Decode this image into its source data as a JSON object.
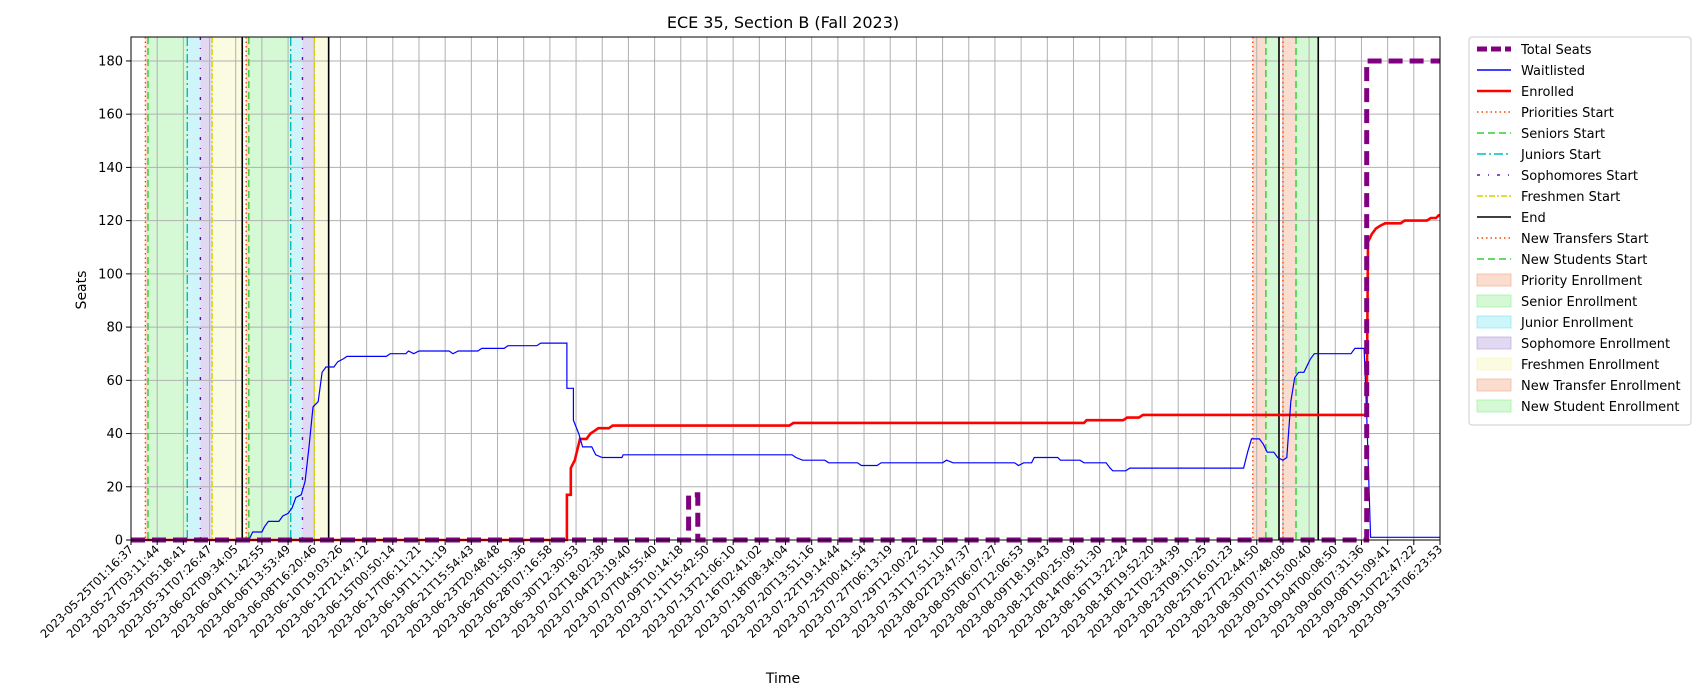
{
  "chart_data": {
    "type": "line",
    "title": "ECE 35, Section B (Fall 2023)",
    "xlabel": "Time",
    "ylabel": "Seats",
    "ylim": [
      0,
      189
    ],
    "yticks": [
      0,
      20,
      40,
      60,
      80,
      100,
      120,
      140,
      160,
      180
    ],
    "xlim": [
      "2023-05-25T01:16:37",
      "2023-09-13T06:23:53"
    ],
    "xtick_labels": [
      "2023-05-25T01:16:37",
      "2023-05-27T03:11:44",
      "2023-05-29T05:18:41",
      "2023-05-31T07:26:47",
      "2023-06-02T09:34:05",
      "2023-06-04T11:42:55",
      "2023-06-06T13:53:49",
      "2023-06-08T16:20:46",
      "2023-06-10T19:03:26",
      "2023-06-12T21:47:12",
      "2023-06-15T00:50:14",
      "2023-06-17T06:11:21",
      "2023-06-19T11:11:19",
      "2023-06-21T15:54:43",
      "2023-06-23T20:48:48",
      "2023-06-26T01:50:36",
      "2023-06-28T07:16:58",
      "2023-06-30T12:30:53",
      "2023-07-02T18:02:38",
      "2023-07-04T23:19:40",
      "2023-07-07T04:55:40",
      "2023-07-09T10:14:18",
      "2023-07-11T15:42:50",
      "2023-07-13T21:06:10",
      "2023-07-16T02:41:02",
      "2023-07-18T08:34:04",
      "2023-07-20T13:51:16",
      "2023-07-22T19:14:44",
      "2023-07-25T00:41:54",
      "2023-07-27T06:13:19",
      "2023-07-29T12:00:22",
      "2023-07-31T17:51:10",
      "2023-08-02T23:47:37",
      "2023-08-05T06:07:27",
      "2023-08-07T12:06:53",
      "2023-08-09T18:19:43",
      "2023-08-12T00:25:09",
      "2023-08-14T06:51:30",
      "2023-08-16T13:22:24",
      "2023-08-18T19:52:20",
      "2023-08-21T02:34:39",
      "2023-08-23T09:10:25",
      "2023-08-25T16:01:23",
      "2023-08-27T22:44:50",
      "2023-08-30T07:48:08",
      "2023-09-01T15:00:40",
      "2023-09-04T00:08:50",
      "2023-09-06T07:31:36",
      "2023-09-08T15:09:41",
      "2023-09-10T22:47:22",
      "2023-09-13T06:23:53"
    ],
    "grid": true,
    "legend_position": "outside-right",
    "series": [
      {
        "name": "Total Seats",
        "color": "#800080",
        "style": "dashed-thick",
        "points": [
          [
            0,
            0
          ],
          [
            42.6,
            0
          ],
          [
            42.6,
            17
          ],
          [
            43.3,
            17
          ],
          [
            43.3,
            0
          ],
          [
            94.4,
            0
          ],
          [
            94.4,
            180
          ],
          [
            100,
            180
          ]
        ]
      },
      {
        "name": "Waitlisted",
        "color": "#0000ff",
        "style": "solid",
        "points": [
          [
            0,
            0
          ],
          [
            9.0,
            0
          ],
          [
            9.3,
            3
          ],
          [
            10.0,
            3
          ],
          [
            10.2,
            5
          ],
          [
            10.5,
            7
          ],
          [
            11.3,
            7
          ],
          [
            11.6,
            9
          ],
          [
            12.0,
            10
          ],
          [
            12.3,
            12
          ],
          [
            12.6,
            16
          ],
          [
            13.0,
            17
          ],
          [
            13.3,
            22
          ],
          [
            13.6,
            35
          ],
          [
            13.9,
            50
          ],
          [
            14.3,
            52
          ],
          [
            14.6,
            63
          ],
          [
            14.9,
            65
          ],
          [
            15.5,
            65
          ],
          [
            15.8,
            67
          ],
          [
            16.2,
            68
          ],
          [
            16.5,
            69
          ],
          [
            19.5,
            69
          ],
          [
            19.8,
            70
          ],
          [
            21.0,
            70
          ],
          [
            21.2,
            71
          ],
          [
            21.6,
            70
          ],
          [
            22.0,
            71
          ],
          [
            24.3,
            71
          ],
          [
            24.6,
            70
          ],
          [
            25.0,
            71
          ],
          [
            26.5,
            71
          ],
          [
            26.8,
            72
          ],
          [
            28.5,
            72
          ],
          [
            28.8,
            73
          ],
          [
            31.0,
            73
          ],
          [
            31.3,
            74
          ],
          [
            33.3,
            74
          ],
          [
            33.3,
            57
          ],
          [
            33.8,
            57
          ],
          [
            33.8,
            45
          ],
          [
            34.2,
            40
          ],
          [
            34.5,
            35
          ],
          [
            35.2,
            35
          ],
          [
            35.5,
            32
          ],
          [
            36.0,
            31
          ],
          [
            37.5,
            31
          ],
          [
            37.6,
            32
          ],
          [
            50.5,
            32
          ],
          [
            50.8,
            31
          ],
          [
            51.3,
            30
          ],
          [
            53.0,
            30
          ],
          [
            53.3,
            29
          ],
          [
            55.5,
            29
          ],
          [
            55.8,
            28
          ],
          [
            57.0,
            28
          ],
          [
            57.3,
            29
          ],
          [
            62.0,
            29
          ],
          [
            62.3,
            30
          ],
          [
            62.8,
            29
          ],
          [
            67.5,
            29
          ],
          [
            67.8,
            28
          ],
          [
            68.2,
            29
          ],
          [
            68.8,
            29
          ],
          [
            69.0,
            31
          ],
          [
            70.8,
            31
          ],
          [
            71.0,
            30
          ],
          [
            72.5,
            30
          ],
          [
            72.8,
            29
          ],
          [
            74.5,
            29
          ],
          [
            74.8,
            27
          ],
          [
            75.0,
            26
          ],
          [
            76.0,
            26
          ],
          [
            76.3,
            27
          ],
          [
            85.0,
            27
          ],
          [
            85.3,
            33
          ],
          [
            85.6,
            38
          ],
          [
            86.2,
            38
          ],
          [
            86.5,
            36
          ],
          [
            86.8,
            33
          ],
          [
            87.3,
            33
          ],
          [
            87.6,
            31
          ],
          [
            88.0,
            30
          ],
          [
            88.3,
            31
          ],
          [
            88.6,
            52
          ],
          [
            88.9,
            61
          ],
          [
            89.2,
            63
          ],
          [
            89.6,
            63
          ],
          [
            89.9,
            66
          ],
          [
            90.1,
            68
          ],
          [
            90.4,
            70
          ],
          [
            91.0,
            70
          ],
          [
            91.3,
            70
          ],
          [
            93.2,
            70
          ],
          [
            93.5,
            72
          ],
          [
            94.2,
            72
          ],
          [
            94.4,
            47
          ],
          [
            94.7,
            1
          ],
          [
            100,
            1
          ]
        ]
      },
      {
        "name": "Enrolled",
        "color": "#ff0000",
        "style": "solid-thick",
        "points": [
          [
            0,
            0
          ],
          [
            33.3,
            0
          ],
          [
            33.3,
            17
          ],
          [
            33.6,
            17
          ],
          [
            33.6,
            27
          ],
          [
            33.9,
            30
          ],
          [
            34.1,
            34
          ],
          [
            34.3,
            38
          ],
          [
            34.8,
            38
          ],
          [
            35.1,
            40
          ],
          [
            35.4,
            41
          ],
          [
            35.7,
            42
          ],
          [
            36.5,
            42
          ],
          [
            36.8,
            43
          ],
          [
            50.3,
            43
          ],
          [
            50.6,
            44
          ],
          [
            72.8,
            44
          ],
          [
            73.0,
            45
          ],
          [
            75.8,
            45
          ],
          [
            76.1,
            46
          ],
          [
            77.0,
            46
          ],
          [
            77.3,
            47
          ],
          [
            94.4,
            47
          ],
          [
            94.5,
            112
          ],
          [
            94.8,
            115
          ],
          [
            95.1,
            117
          ],
          [
            95.4,
            118
          ],
          [
            95.8,
            119
          ],
          [
            97.0,
            119
          ],
          [
            97.3,
            120
          ],
          [
            99.0,
            120
          ],
          [
            99.3,
            121
          ],
          [
            99.7,
            121
          ],
          [
            99.9,
            122
          ],
          [
            100,
            122
          ]
        ]
      }
    ],
    "vertical_markers": [
      {
        "name": "Priorities Start",
        "color": "#ff4500",
        "style": "dotted",
        "x": [
          1.1,
          8.8,
          85.7,
          88.0
        ]
      },
      {
        "name": "Seniors Start",
        "color": "#32cd32",
        "style": "dashed",
        "x": [
          1.3,
          9.0,
          86.7,
          89.0
        ]
      },
      {
        "name": "Juniors Start",
        "color": "#00bfbf",
        "style": "dashdot",
        "x": [
          4.3,
          12.2
        ]
      },
      {
        "name": "Sophomores Start",
        "color": "#6a0dad",
        "style": "dashdot-sparse",
        "x": [
          5.3,
          13.1
        ]
      },
      {
        "name": "Freshmen Start",
        "color": "#d4d400",
        "style": "dashdot-dense",
        "x": [
          6.2,
          14.0
        ]
      },
      {
        "name": "End",
        "color": "#000000",
        "style": "solid",
        "x": [
          8.5,
          15.1,
          87.7,
          90.7
        ]
      },
      {
        "name": "New Transfers Start",
        "color": "#ff4500",
        "style": "dotted",
        "x": []
      },
      {
        "name": "New Students Start",
        "color": "#32cd32",
        "style": "dashed",
        "x": []
      }
    ],
    "enrollment_periods": [
      {
        "name": "Priority Enrollment",
        "color": "#f4a582",
        "ranges": [
          [
            1.1,
            1.3
          ],
          [
            8.8,
            9.0
          ],
          [
            85.7,
            86.7
          ]
        ]
      },
      {
        "name": "Senior Enrollment",
        "color": "#90ee90",
        "ranges": [
          [
            1.3,
            4.3
          ],
          [
            9.0,
            12.2
          ],
          [
            86.7,
            87.7
          ]
        ]
      },
      {
        "name": "Junior Enrollment",
        "color": "#7fe5f0",
        "ranges": [
          [
            4.3,
            5.3
          ],
          [
            12.2,
            13.1
          ]
        ]
      },
      {
        "name": "Sophomore Enrollment",
        "color": "#b19cd9",
        "ranges": [
          [
            5.3,
            6.2
          ],
          [
            13.1,
            14.0
          ]
        ]
      },
      {
        "name": "Freshmen Enrollment",
        "color": "#f5f5b0",
        "ranges": [
          [
            6.2,
            8.5
          ],
          [
            14.0,
            15.1
          ]
        ]
      },
      {
        "name": "New Transfer Enrollment",
        "color": "#f4a582",
        "ranges": [
          [
            88.0,
            89.0
          ]
        ]
      },
      {
        "name": "New Student Enrollment",
        "color": "#90ee90",
        "ranges": [
          [
            89.0,
            90.7
          ]
        ]
      }
    ]
  }
}
